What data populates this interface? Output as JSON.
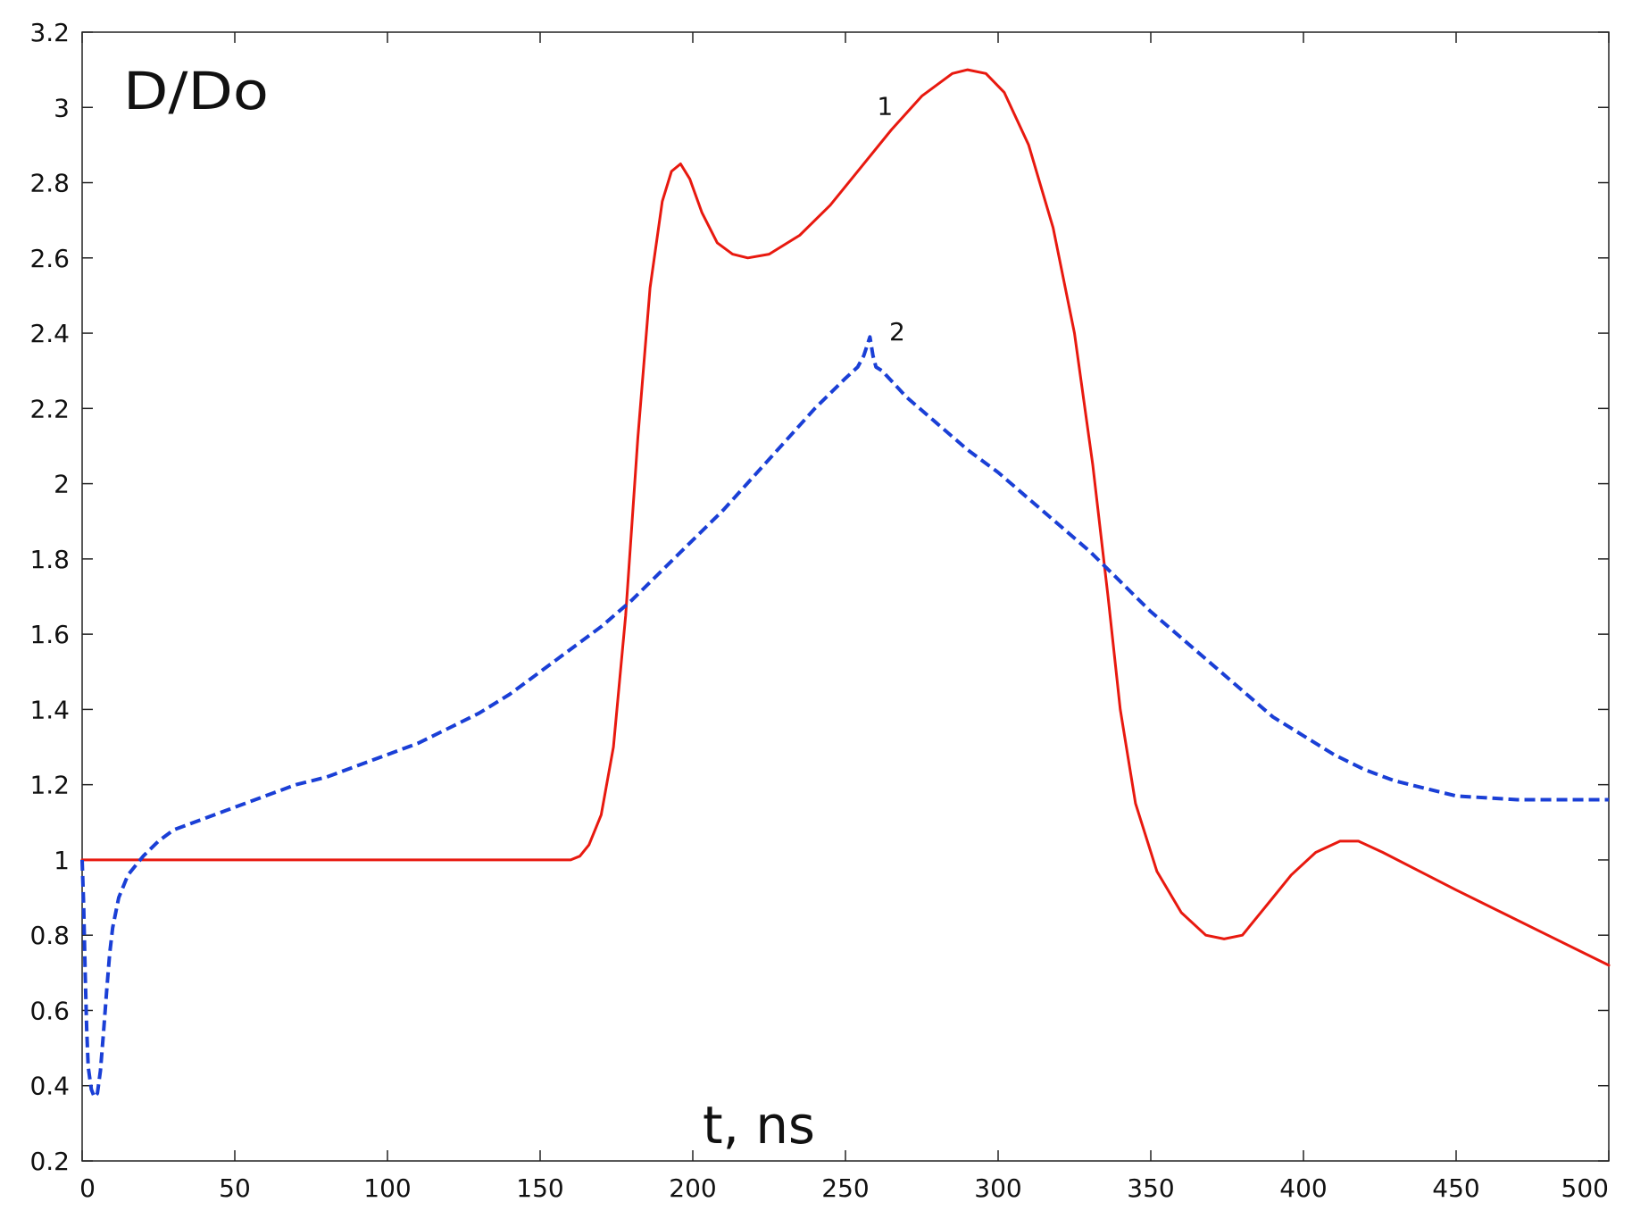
{
  "chart_data": {
    "type": "line",
    "title": "",
    "xlabel": "t, ns",
    "ylabel": "D/Do",
    "xlim": [
      0,
      500
    ],
    "ylim": [
      0.2,
      3.2
    ],
    "xticks": [
      "0",
      "50",
      "100",
      "150",
      "200",
      "250",
      "300",
      "350",
      "400",
      "450",
      "500"
    ],
    "yticks": [
      "0.2",
      "0.4",
      "0.6",
      "0.8",
      "1",
      "1.2",
      "1.4",
      "1.6",
      "1.8",
      "2",
      "2.2",
      "2.4",
      "2.6",
      "2.8",
      "3",
      "3.2"
    ],
    "grid": false,
    "legend": "none",
    "series": [
      {
        "name": "1",
        "color": "#e8190f",
        "style": "solid",
        "label_at": [
          258,
          3.0
        ],
        "points": [
          [
            0,
            1.0
          ],
          [
            50,
            1.0
          ],
          [
            100,
            1.0
          ],
          [
            155,
            1.0
          ],
          [
            160,
            1.0
          ],
          [
            163,
            1.01
          ],
          [
            166,
            1.04
          ],
          [
            170,
            1.12
          ],
          [
            174,
            1.3
          ],
          [
            178,
            1.65
          ],
          [
            182,
            2.12
          ],
          [
            186,
            2.52
          ],
          [
            190,
            2.75
          ],
          [
            193,
            2.83
          ],
          [
            196,
            2.85
          ],
          [
            199,
            2.81
          ],
          [
            203,
            2.72
          ],
          [
            208,
            2.64
          ],
          [
            213,
            2.61
          ],
          [
            218,
            2.6
          ],
          [
            225,
            2.61
          ],
          [
            235,
            2.66
          ],
          [
            245,
            2.74
          ],
          [
            255,
            2.84
          ],
          [
            265,
            2.94
          ],
          [
            275,
            3.03
          ],
          [
            285,
            3.09
          ],
          [
            290,
            3.1
          ],
          [
            296,
            3.09
          ],
          [
            302,
            3.04
          ],
          [
            310,
            2.9
          ],
          [
            318,
            2.68
          ],
          [
            325,
            2.4
          ],
          [
            331,
            2.05
          ],
          [
            336,
            1.7
          ],
          [
            340,
            1.4
          ],
          [
            345,
            1.15
          ],
          [
            352,
            0.97
          ],
          [
            360,
            0.86
          ],
          [
            368,
            0.8
          ],
          [
            374,
            0.79
          ],
          [
            380,
            0.8
          ],
          [
            388,
            0.88
          ],
          [
            396,
            0.96
          ],
          [
            404,
            1.02
          ],
          [
            412,
            1.05
          ],
          [
            418,
            1.05
          ],
          [
            426,
            1.02
          ],
          [
            438,
            0.97
          ],
          [
            450,
            0.92
          ],
          [
            465,
            0.86
          ],
          [
            480,
            0.8
          ],
          [
            500,
            0.72
          ]
        ]
      },
      {
        "name": "2",
        "color": "#1a3fd6",
        "style": "dashed",
        "label_at": [
          262,
          2.4
        ],
        "points": [
          [
            0,
            1.0
          ],
          [
            0.5,
            0.88
          ],
          [
            1,
            0.7
          ],
          [
            1.5,
            0.55
          ],
          [
            2,
            0.45
          ],
          [
            3,
            0.39
          ],
          [
            4,
            0.37
          ],
          [
            5,
            0.38
          ],
          [
            6,
            0.44
          ],
          [
            7,
            0.54
          ],
          [
            8,
            0.65
          ],
          [
            9,
            0.75
          ],
          [
            10,
            0.82
          ],
          [
            12,
            0.9
          ],
          [
            15,
            0.96
          ],
          [
            20,
            1.01
          ],
          [
            25,
            1.05
          ],
          [
            30,
            1.08
          ],
          [
            40,
            1.11
          ],
          [
            50,
            1.14
          ],
          [
            60,
            1.17
          ],
          [
            70,
            1.2
          ],
          [
            80,
            1.22
          ],
          [
            90,
            1.25
          ],
          [
            100,
            1.28
          ],
          [
            110,
            1.31
          ],
          [
            120,
            1.35
          ],
          [
            130,
            1.39
          ],
          [
            140,
            1.44
          ],
          [
            150,
            1.5
          ],
          [
            160,
            1.56
          ],
          [
            170,
            1.62
          ],
          [
            180,
            1.69
          ],
          [
            190,
            1.77
          ],
          [
            200,
            1.85
          ],
          [
            210,
            1.93
          ],
          [
            220,
            2.02
          ],
          [
            230,
            2.11
          ],
          [
            240,
            2.2
          ],
          [
            250,
            2.28
          ],
          [
            254,
            2.31
          ],
          [
            256,
            2.34
          ],
          [
            258,
            2.39
          ],
          [
            259,
            2.34
          ],
          [
            260,
            2.31
          ],
          [
            262,
            2.3
          ],
          [
            270,
            2.23
          ],
          [
            280,
            2.16
          ],
          [
            290,
            2.09
          ],
          [
            300,
            2.03
          ],
          [
            310,
            1.96
          ],
          [
            320,
            1.89
          ],
          [
            330,
            1.82
          ],
          [
            340,
            1.74
          ],
          [
            350,
            1.66
          ],
          [
            360,
            1.59
          ],
          [
            370,
            1.52
          ],
          [
            380,
            1.45
          ],
          [
            390,
            1.38
          ],
          [
            400,
            1.33
          ],
          [
            410,
            1.28
          ],
          [
            420,
            1.24
          ],
          [
            430,
            1.21
          ],
          [
            440,
            1.19
          ],
          [
            450,
            1.17
          ],
          [
            460,
            1.165
          ],
          [
            470,
            1.16
          ],
          [
            480,
            1.16
          ],
          [
            490,
            1.16
          ],
          [
            500,
            1.16
          ]
        ]
      }
    ]
  }
}
